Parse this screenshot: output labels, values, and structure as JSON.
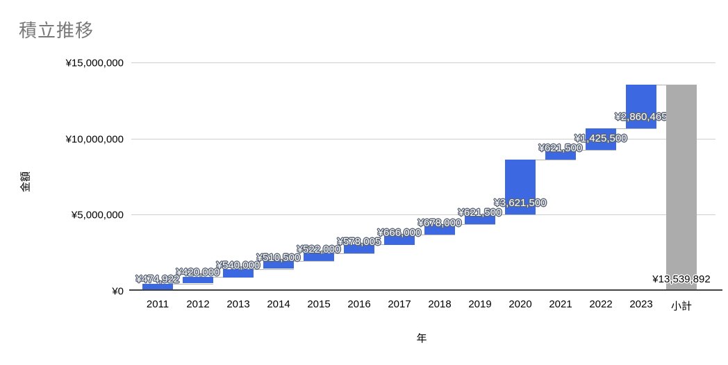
{
  "chart": {
    "title": "積立推移",
    "y_axis_title": "金額",
    "x_axis_title": "年"
  },
  "colors": {
    "bar_increase": "#3c69e1",
    "bar_subtotal": "#acacac",
    "gridline": "#cfcfcf",
    "axis_line": "#424242",
    "connector": "#b3b3b3",
    "title_text": "#787878",
    "tick_text": "#000000",
    "label_text_increase": "#ffffff",
    "label_halo_increase": "#5a6577",
    "label_text_subtotal": "#000000",
    "label_halo_subtotal": "#ffffff"
  },
  "chart_data": {
    "type": "waterfall",
    "title": "積立推移",
    "xlabel": "年",
    "ylabel": "金額",
    "ylim": [
      0,
      15000000
    ],
    "grid": true,
    "y_ticks": [
      {
        "value": 0,
        "label": "¥0"
      },
      {
        "value": 5000000,
        "label": "¥5,000,000"
      },
      {
        "value": 10000000,
        "label": "¥10,000,000"
      },
      {
        "value": 15000000,
        "label": "¥15,000,000"
      }
    ],
    "series": [
      {
        "category": "2011",
        "value": 474922,
        "label": "¥474,922",
        "role": "increase"
      },
      {
        "category": "2012",
        "value": 420000,
        "label": "¥420,000",
        "role": "increase"
      },
      {
        "category": "2013",
        "value": 540000,
        "label": "¥540,000",
        "role": "increase"
      },
      {
        "category": "2014",
        "value": 510500,
        "label": "¥510,500",
        "role": "increase"
      },
      {
        "category": "2015",
        "value": 522000,
        "label": "¥522,000",
        "role": "increase"
      },
      {
        "category": "2016",
        "value": 578005,
        "label": "¥578,005",
        "role": "increase"
      },
      {
        "category": "2017",
        "value": 666000,
        "label": "¥666,000",
        "role": "increase"
      },
      {
        "category": "2018",
        "value": 678000,
        "label": "¥678,000",
        "role": "increase"
      },
      {
        "category": "2019",
        "value": 621500,
        "label": "¥621,500",
        "role": "increase"
      },
      {
        "category": "2020",
        "value": 3621500,
        "label": "¥3,621,500",
        "role": "increase"
      },
      {
        "category": "2021",
        "value": 621500,
        "label": "¥621,500",
        "role": "increase"
      },
      {
        "category": "2022",
        "value": 1425500,
        "label": "¥1,425,500",
        "role": "increase"
      },
      {
        "category": "2023",
        "value": 2860465,
        "label": "¥2,860,465",
        "role": "increase"
      },
      {
        "category": "小計",
        "value": 13539892,
        "label": "¥13,539,892",
        "role": "subtotal"
      }
    ]
  }
}
